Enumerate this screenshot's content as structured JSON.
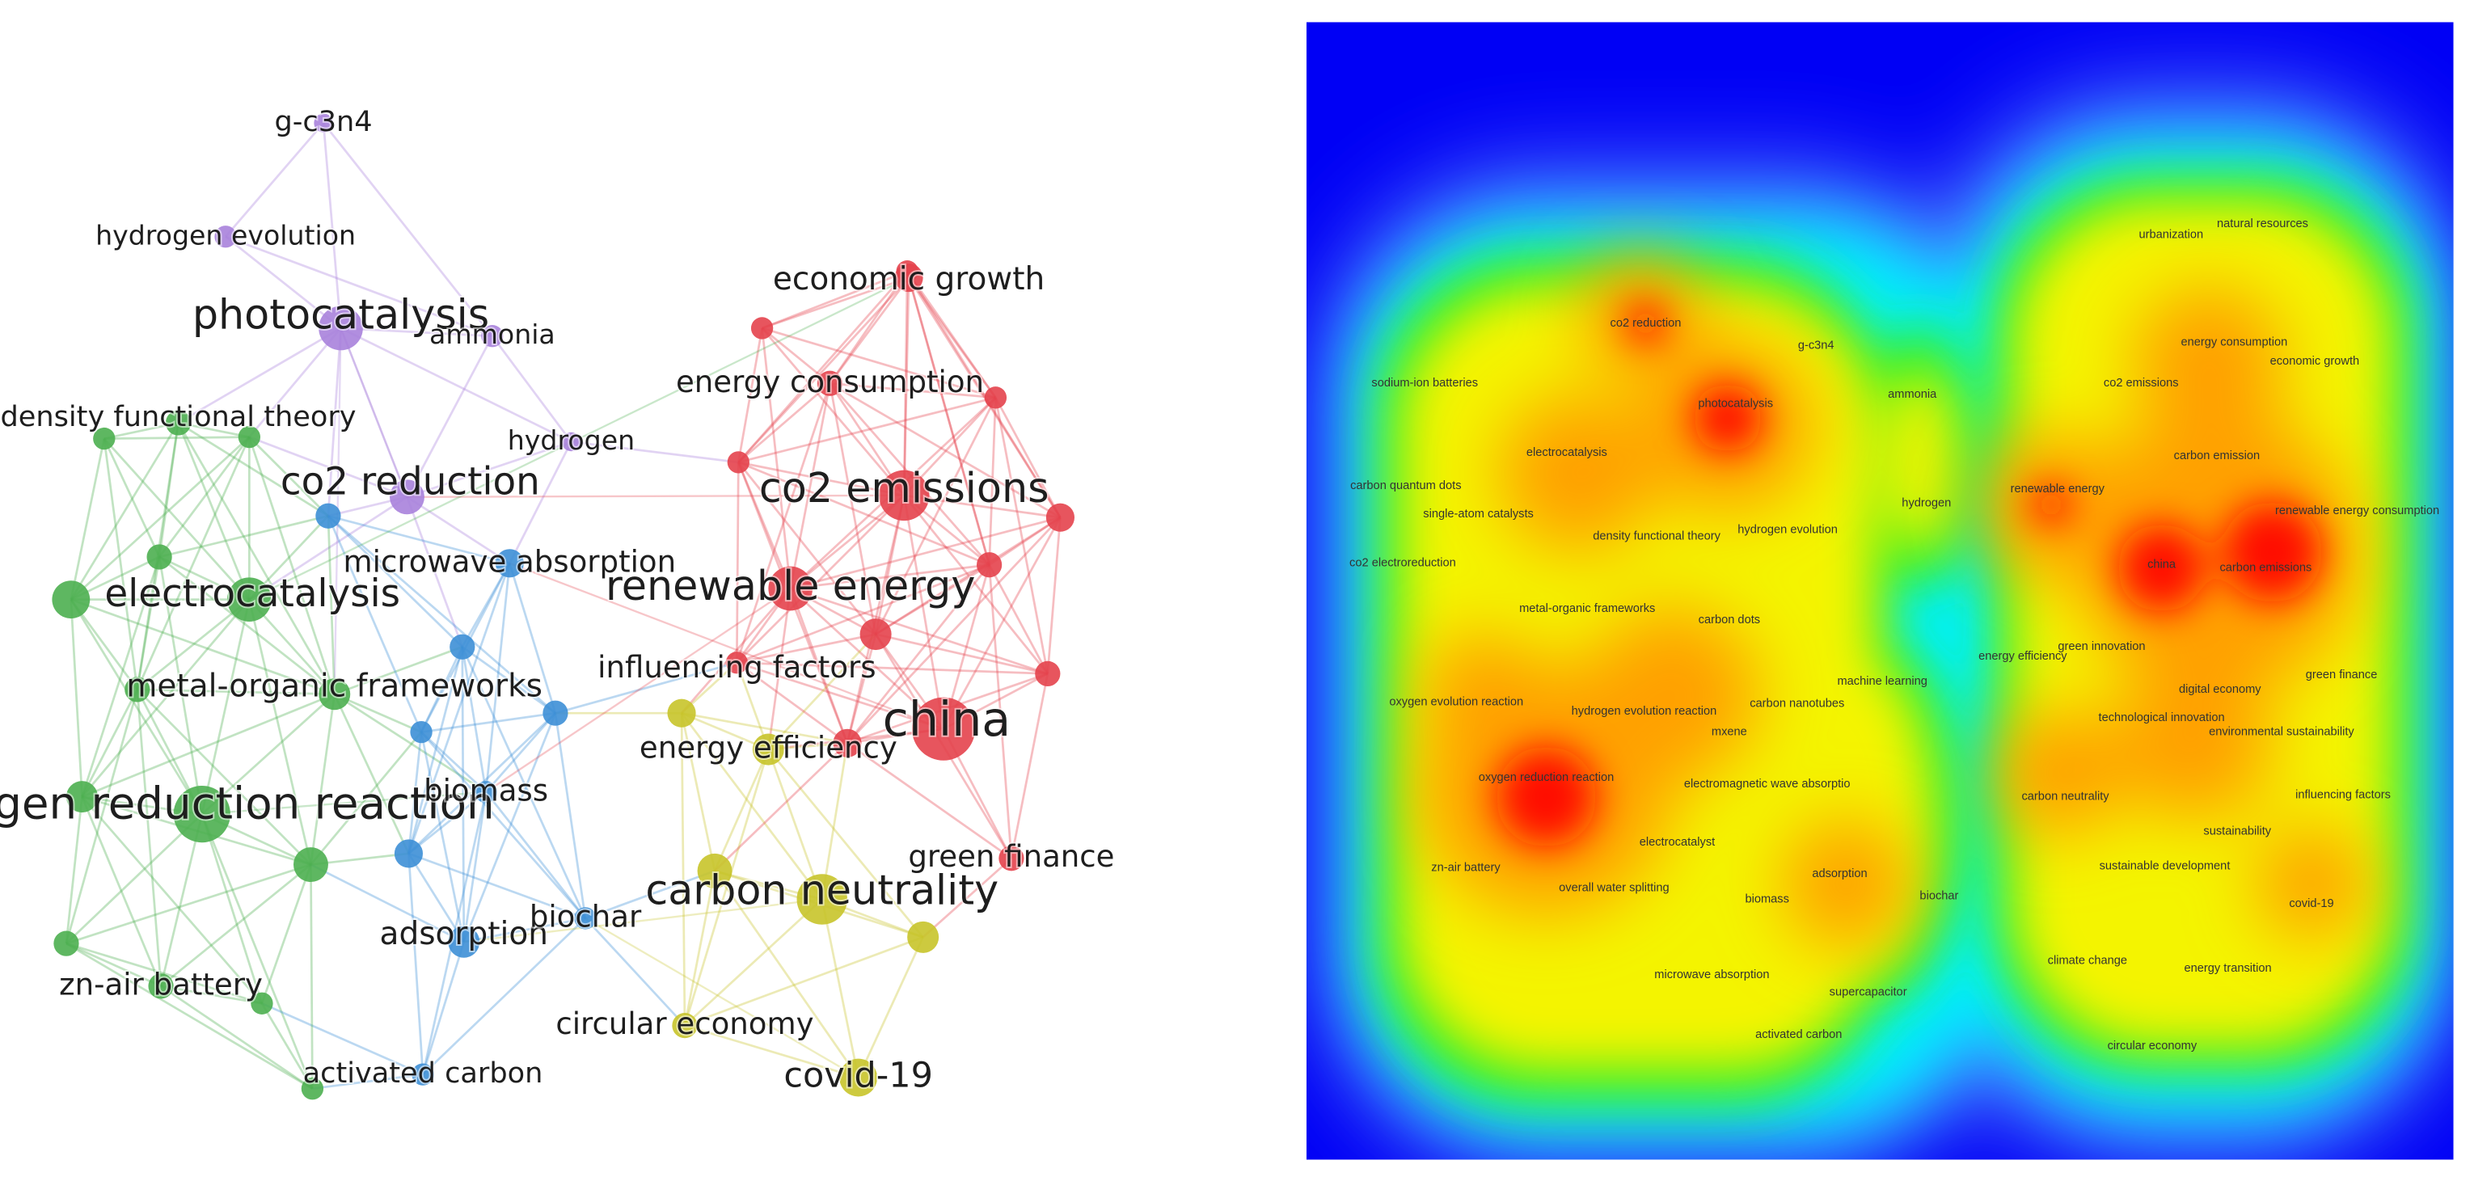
{
  "network": {
    "nodes": [
      {
        "label": "g-c3n4"
      },
      {
        "label": "hydrogen evolution"
      },
      {
        "label": "photocatalysis"
      },
      {
        "label": "ammonia"
      },
      {
        "label": "hydrogen"
      },
      {
        "label": "co2 reduction"
      },
      {
        "label": "density functional theory"
      },
      {
        "label": "electrocatalysis"
      },
      {
        "label": "metal-organic frameworks"
      },
      {
        "label": "oxygen reduction reaction"
      },
      {
        "label": "zn-air battery"
      },
      {
        "label": "microwave absorption"
      },
      {
        "label": "biomass"
      },
      {
        "label": "adsorption"
      },
      {
        "label": "biochar"
      },
      {
        "label": "activated carbon"
      },
      {
        "label": "economic growth"
      },
      {
        "label": "energy consumption"
      },
      {
        "label": "co2 emissions"
      },
      {
        "label": "renewable energy"
      },
      {
        "label": "influencing factors"
      },
      {
        "label": "china"
      },
      {
        "label": "green finance"
      },
      {
        "label": "energy efficiency"
      },
      {
        "label": "carbon neutrality"
      },
      {
        "label": "circular economy"
      },
      {
        "label": "covid-19"
      }
    ]
  },
  "density": {
    "labels": [
      "co2 reduction",
      "g-c3n4",
      "ammonia",
      "sodium-ion batteries",
      "photocatalysis",
      "electrocatalysis",
      "carbon quantum dots",
      "hydrogen",
      "single-atom catalysts",
      "density functional theory",
      "hydrogen evolution",
      "co2 electroreduction",
      "metal-organic frameworks",
      "carbon dots",
      "machine learning",
      "oxygen evolution reaction",
      "hydrogen evolution reaction",
      "carbon nanotubes",
      "mxene",
      "oxygen reduction reaction",
      "electromagnetic wave absorptio",
      "electrocatalyst",
      "zn-air battery",
      "adsorption",
      "overall water splitting",
      "biomass",
      "biochar",
      "microwave absorption",
      "supercapacitor",
      "activated carbon",
      "urbanization",
      "natural resources",
      "energy consumption",
      "economic growth",
      "co2 emissions",
      "carbon emission",
      "renewable energy",
      "renewable energy consumption",
      "china",
      "carbon emissions",
      "energy efficiency",
      "green innovation",
      "green finance",
      "digital economy",
      "technological innovation",
      "environmental sustainability",
      "carbon neutrality",
      "influencing factors",
      "sustainability",
      "sustainable development",
      "covid-19",
      "climate change",
      "energy transition",
      "circular economy"
    ]
  }
}
